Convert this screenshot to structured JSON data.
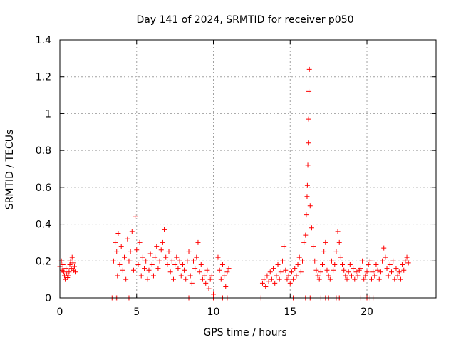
{
  "chart_data": {
    "type": "scatter",
    "title": "Day 141 of 2024, SRMTID for receiver p050",
    "xlabel": "GPS time / hours",
    "ylabel": "SRMTID / TECUs",
    "xlim": [
      0,
      24.5
    ],
    "ylim": [
      0,
      1.4
    ],
    "xticks": [
      0,
      5,
      10,
      15,
      20
    ],
    "xtick_labels": [
      "0",
      "5",
      "10",
      "15",
      "20"
    ],
    "yticks": [
      0,
      0.2,
      0.4,
      0.6,
      0.8,
      1.0,
      1.2,
      1.4
    ],
    "ytick_labels": [
      "0",
      "0.2",
      "0.4",
      "0.6",
      "0.8",
      "1",
      "1.2",
      "1.4"
    ],
    "grid": true,
    "legend": "none",
    "marker": "+",
    "color": "#ff0000",
    "series": [
      {
        "name": "SRMTID",
        "x": [
          0.0,
          0.1,
          0.15,
          0.2,
          0.25,
          0.3,
          0.35,
          0.4,
          0.45,
          0.5,
          0.55,
          0.6,
          0.65,
          0.7,
          0.75,
          0.8,
          0.85,
          0.9,
          0.95,
          1.0,
          3.5,
          3.6,
          3.7,
          3.75,
          3.8,
          3.9,
          4.0,
          4.1,
          4.2,
          4.3,
          4.4,
          4.5,
          4.6,
          4.7,
          4.8,
          4.9,
          5.0,
          5.1,
          5.2,
          5.3,
          5.4,
          5.5,
          5.6,
          5.7,
          5.8,
          5.9,
          6.0,
          6.1,
          6.2,
          6.3,
          6.4,
          6.5,
          6.6,
          6.7,
          6.8,
          6.9,
          7.0,
          7.1,
          7.2,
          7.3,
          7.4,
          7.5,
          7.6,
          7.7,
          7.8,
          7.9,
          8.0,
          8.1,
          8.2,
          8.3,
          8.4,
          8.5,
          8.6,
          8.7,
          8.8,
          8.9,
          9.0,
          9.1,
          9.2,
          9.3,
          9.4,
          9.5,
          9.6,
          9.7,
          9.8,
          9.9,
          10.0,
          10.3,
          10.4,
          10.5,
          10.6,
          10.7,
          10.8,
          10.9,
          11.0,
          13.2,
          13.3,
          13.4,
          13.5,
          13.6,
          13.7,
          13.8,
          13.9,
          14.0,
          14.1,
          14.2,
          14.3,
          14.4,
          14.5,
          14.6,
          14.7,
          14.8,
          14.9,
          15.0,
          15.1,
          15.2,
          15.3,
          15.4,
          15.5,
          15.6,
          15.7,
          15.8,
          15.9,
          16.0,
          16.05,
          16.1,
          16.12,
          16.15,
          16.18,
          16.2,
          16.22,
          16.25,
          16.3,
          16.4,
          16.5,
          16.6,
          16.7,
          16.8,
          16.9,
          17.0,
          17.1,
          17.2,
          17.3,
          17.4,
          17.5,
          17.6,
          17.7,
          17.8,
          17.9,
          18.0,
          18.1,
          18.2,
          18.3,
          18.4,
          18.5,
          18.6,
          18.7,
          18.8,
          18.9,
          19.0,
          19.1,
          19.2,
          19.3,
          19.4,
          19.5,
          19.6,
          19.7,
          19.8,
          19.9,
          20.0,
          20.1,
          20.2,
          20.3,
          20.4,
          20.5,
          20.6,
          20.7,
          20.8,
          20.9,
          21.0,
          21.1,
          21.2,
          21.3,
          21.4,
          21.5,
          21.6,
          21.7,
          21.8,
          21.9,
          22.0,
          22.1,
          22.2,
          22.3,
          22.4,
          22.5,
          22.6,
          22.7,
          3.4,
          3.6,
          3.7,
          4.5,
          8.4,
          10.0,
          10.6,
          10.9,
          13.1,
          15.2,
          16.0,
          16.3,
          17.0,
          17.3,
          17.5,
          18.0,
          18.2,
          19.6,
          20.0,
          20.2,
          20.4
        ],
        "y": [
          0.17,
          0.2,
          0.15,
          0.18,
          0.14,
          0.12,
          0.1,
          0.16,
          0.13,
          0.11,
          0.12,
          0.14,
          0.18,
          0.2,
          0.16,
          0.22,
          0.19,
          0.15,
          0.17,
          0.14,
          0.2,
          0.3,
          0.25,
          0.12,
          0.35,
          0.18,
          0.28,
          0.15,
          0.22,
          0.1,
          0.32,
          0.2,
          0.25,
          0.36,
          0.15,
          0.44,
          0.26,
          0.18,
          0.3,
          0.12,
          0.22,
          0.16,
          0.2,
          0.1,
          0.15,
          0.24,
          0.18,
          0.12,
          0.22,
          0.28,
          0.16,
          0.2,
          0.26,
          0.3,
          0.37,
          0.22,
          0.18,
          0.25,
          0.14,
          0.2,
          0.1,
          0.18,
          0.22,
          0.16,
          0.2,
          0.12,
          0.18,
          0.15,
          0.1,
          0.2,
          0.25,
          0.12,
          0.08,
          0.2,
          0.16,
          0.22,
          0.3,
          0.14,
          0.18,
          0.1,
          0.12,
          0.08,
          0.15,
          0.05,
          0.1,
          0.12,
          0.02,
          0.22,
          0.15,
          0.1,
          0.18,
          0.12,
          0.06,
          0.14,
          0.16,
          0.08,
          0.1,
          0.06,
          0.12,
          0.09,
          0.14,
          0.1,
          0.16,
          0.08,
          0.12,
          0.18,
          0.1,
          0.14,
          0.2,
          0.28,
          0.15,
          0.1,
          0.12,
          0.08,
          0.14,
          0.1,
          0.16,
          0.12,
          0.18,
          0.22,
          0.14,
          0.2,
          0.3,
          0.34,
          0.45,
          0.55,
          0.61,
          0.72,
          0.84,
          0.97,
          1.12,
          1.24,
          0.5,
          0.38,
          0.28,
          0.2,
          0.15,
          0.12,
          0.1,
          0.14,
          0.18,
          0.25,
          0.3,
          0.15,
          0.12,
          0.1,
          0.2,
          0.15,
          0.18,
          0.25,
          0.36,
          0.3,
          0.22,
          0.18,
          0.15,
          0.12,
          0.1,
          0.14,
          0.18,
          0.12,
          0.16,
          0.1,
          0.14,
          0.12,
          0.15,
          0.16,
          0.2,
          0.1,
          0.12,
          0.14,
          0.18,
          0.2,
          0.1,
          0.14,
          0.12,
          0.18,
          0.15,
          0.1,
          0.14,
          0.2,
          0.27,
          0.22,
          0.16,
          0.12,
          0.18,
          0.14,
          0.2,
          0.1,
          0.16,
          0.12,
          0.14,
          0.1,
          0.18,
          0.15,
          0.2,
          0.22,
          0.19,
          0,
          0,
          0,
          0,
          0,
          0,
          0,
          0,
          0,
          0,
          0,
          0,
          0,
          0,
          0,
          0,
          0,
          0,
          0,
          0,
          0
        ]
      }
    ]
  }
}
